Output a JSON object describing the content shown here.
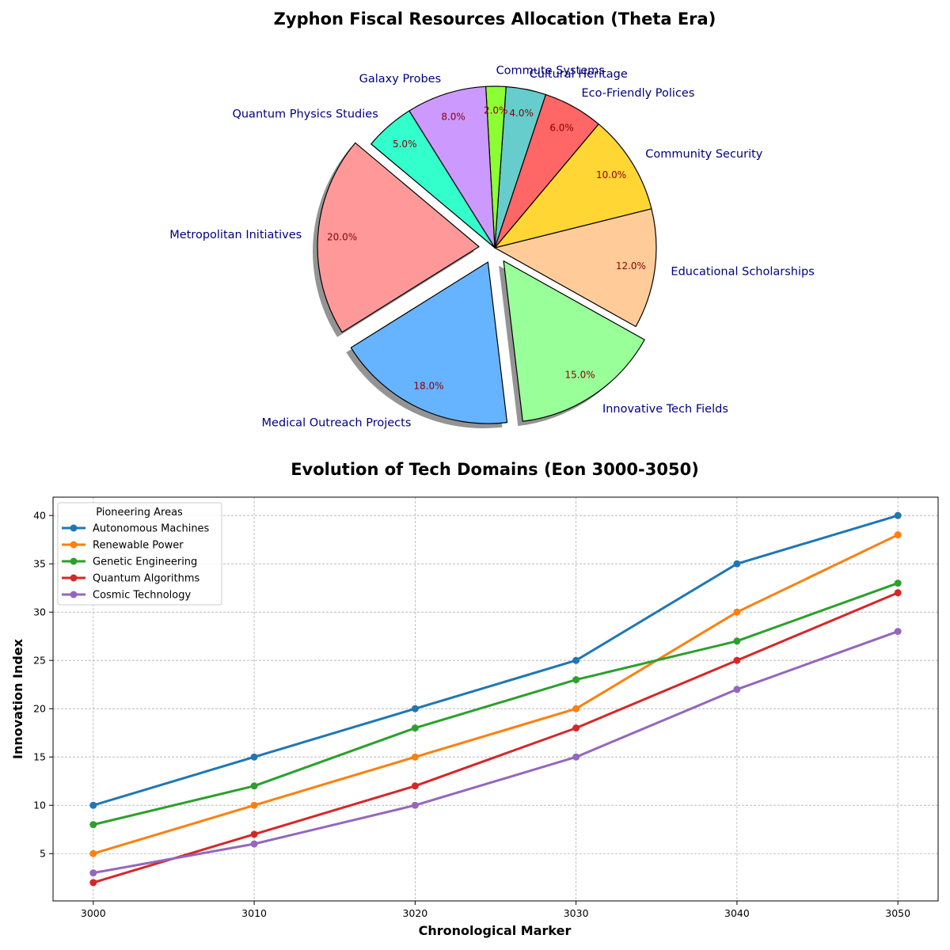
{
  "chart_data": [
    {
      "type": "pie",
      "title": "Zyphon Fiscal Resources Allocation (Theta Era)",
      "start_angle_deg": 140,
      "shadow": true,
      "slices": [
        {
          "label": "Metropolitan Initiatives",
          "value": 20,
          "pct_label": "20.0%",
          "color": "#ff9999",
          "explode": true
        },
        {
          "label": "Medical Outreach Projects",
          "value": 18,
          "pct_label": "18.0%",
          "color": "#66b3ff",
          "explode": true
        },
        {
          "label": "Innovative Tech Fields",
          "value": 15,
          "pct_label": "15.0%",
          "color": "#99ff99",
          "explode": true
        },
        {
          "label": "Educational Scholarships",
          "value": 12,
          "pct_label": "12.0%",
          "color": "#ffcc99",
          "explode": false
        },
        {
          "label": "Community Security",
          "value": 10,
          "pct_label": "10.0%",
          "color": "#ffd633",
          "explode": false
        },
        {
          "label": "Eco-Friendly Polices",
          "value": 6,
          "pct_label": "6.0%",
          "color": "#ff6666",
          "explode": false
        },
        {
          "label": "Cultural Heritage",
          "value": 4,
          "pct_label": "4.0%",
          "color": "#66cccc",
          "explode": false
        },
        {
          "label": "Commute Systems",
          "value": 2,
          "pct_label": "2.0%",
          "color": "#8cff33",
          "explode": false
        },
        {
          "label": "Galaxy Probes",
          "value": 8,
          "pct_label": "8.0%",
          "color": "#cc99ff",
          "explode": false
        },
        {
          "label": "Quantum Physics Studies",
          "value": 5,
          "pct_label": "5.0%",
          "color": "#33ffcc",
          "explode": false
        }
      ]
    },
    {
      "type": "line",
      "title": "Evolution of Tech Domains (Eon 3000-3050)",
      "xlabel": "Chronological Marker",
      "ylabel": "Innovation Index",
      "x": [
        3000,
        3010,
        3020,
        3030,
        3040,
        3050
      ],
      "xlim": [
        2997.5,
        3052.5
      ],
      "ylim": [
        0.1,
        41.9
      ],
      "xticks": [
        3000,
        3010,
        3020,
        3030,
        3040,
        3050
      ],
      "yticks": [
        5,
        10,
        15,
        20,
        25,
        30,
        35,
        40
      ],
      "grid": true,
      "legend_title": "Pioneering Areas",
      "legend_position": "upper left",
      "series": [
        {
          "name": "Autonomous Machines",
          "values": [
            10,
            15,
            20,
            25,
            35,
            40
          ],
          "color": "#1f77b4"
        },
        {
          "name": "Renewable Power",
          "values": [
            5,
            10,
            15,
            20,
            30,
            38
          ],
          "color": "#ff7f0e"
        },
        {
          "name": "Genetic Engineering",
          "values": [
            8,
            12,
            18,
            23,
            27,
            33
          ],
          "color": "#2ca02c"
        },
        {
          "name": "Quantum Algorithms",
          "values": [
            2,
            7,
            12,
            18,
            25,
            32
          ],
          "color": "#d62728"
        },
        {
          "name": "Cosmic Technology",
          "values": [
            3,
            6,
            10,
            15,
            22,
            28
          ],
          "color": "#9467bd"
        }
      ]
    }
  ]
}
